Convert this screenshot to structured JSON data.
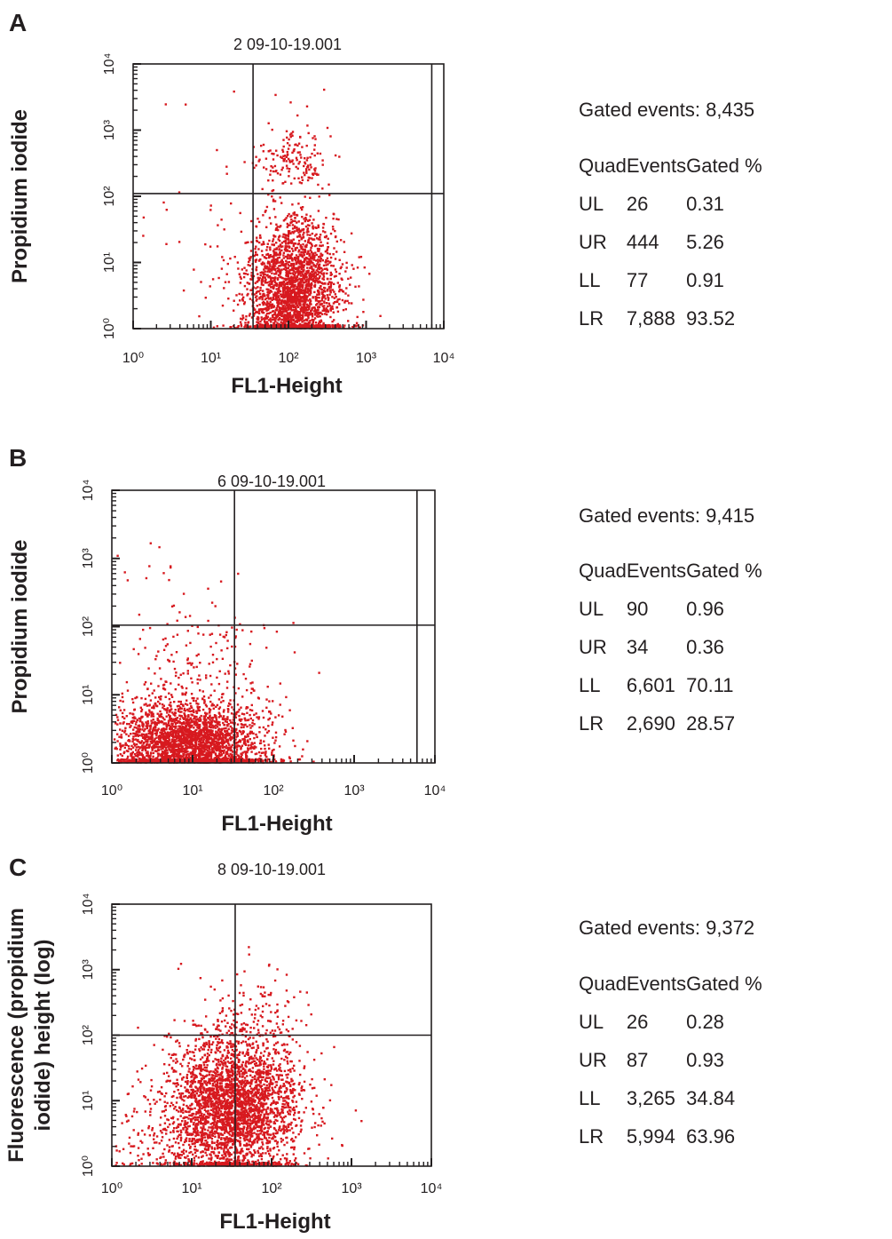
{
  "chart_data": [
    {
      "panel": "A",
      "type": "scatter",
      "title": "2 09-10-19.001",
      "xlabel": "FL1-Height",
      "ylabel": "Propidium iodide",
      "x_scale": "log",
      "y_scale": "log",
      "xlim": [
        1,
        10000
      ],
      "ylim": [
        1,
        10000
      ],
      "x_ticks": [
        "10⁰",
        "10¹",
        "10²",
        "10³",
        "10⁴"
      ],
      "y_ticks": [
        "10⁰",
        "10¹",
        "10²",
        "10³",
        "10⁴"
      ],
      "quadrant_x": 35,
      "quadrant_y": 110,
      "gate_x": 7000,
      "point_color": "#d7191f",
      "stats": {
        "gated_events": "Gated events: 8,435",
        "header": [
          "Quad",
          "Events",
          "Gated %"
        ],
        "rows": [
          [
            "UL",
            "26",
            "0.31"
          ],
          [
            "UR",
            "444",
            "5.26"
          ],
          [
            "LL",
            "77",
            "0.91"
          ],
          [
            "LR",
            "7,888",
            "93.52"
          ]
        ]
      }
    },
    {
      "panel": "B",
      "type": "scatter",
      "title": "6 09-10-19.001",
      "xlabel": "FL1-Height",
      "ylabel": "Propidium iodide",
      "x_scale": "log",
      "y_scale": "log",
      "xlim": [
        1,
        10000
      ],
      "ylim": [
        1,
        10000
      ],
      "x_ticks": [
        "10⁰",
        "10¹",
        "10²",
        "10³",
        "10⁴"
      ],
      "y_ticks": [
        "10⁰",
        "10¹",
        "10²",
        "10³",
        "10⁴"
      ],
      "quadrant_x": 33,
      "quadrant_y": 105,
      "gate_x": 6000,
      "point_color": "#d7191f",
      "stats": {
        "gated_events": "Gated events: 9,415",
        "header": [
          "Quad",
          "Events",
          "Gated %"
        ],
        "rows": [
          [
            "UL",
            "90",
            "0.96"
          ],
          [
            "UR",
            "34",
            "0.36"
          ],
          [
            "LL",
            "6,601",
            "70.11"
          ],
          [
            "LR",
            "2,690",
            "28.57"
          ]
        ]
      }
    },
    {
      "panel": "C",
      "type": "scatter",
      "title": "8 09-10-19.001",
      "xlabel": "FL1-Height",
      "ylabel": "Fluorescence (propidium iodide) height (log)",
      "ylabel_lines": [
        "Fluorescence (propidium",
        "iodide) height (log)"
      ],
      "x_scale": "log",
      "y_scale": "log",
      "xlim": [
        1,
        10000
      ],
      "ylim": [
        1,
        10000
      ],
      "x_ticks": [
        "10⁰",
        "10¹",
        "10²",
        "10³",
        "10⁴"
      ],
      "y_ticks": [
        "10⁰",
        "10¹",
        "10²",
        "10³",
        "10⁴"
      ],
      "quadrant_x": 35,
      "quadrant_y": 100,
      "gate_x": null,
      "point_color": "#d7191f",
      "stats": {
        "gated_events": "Gated events: 9,372",
        "header": [
          "Quad",
          "Events",
          "Gated %"
        ],
        "rows": [
          [
            "UL",
            "26",
            "0.28"
          ],
          [
            "UR",
            "87",
            "0.93"
          ],
          [
            "LL",
            "3,265",
            "34.84"
          ],
          [
            "LR",
            "5,994",
            "63.96"
          ]
        ]
      }
    }
  ]
}
